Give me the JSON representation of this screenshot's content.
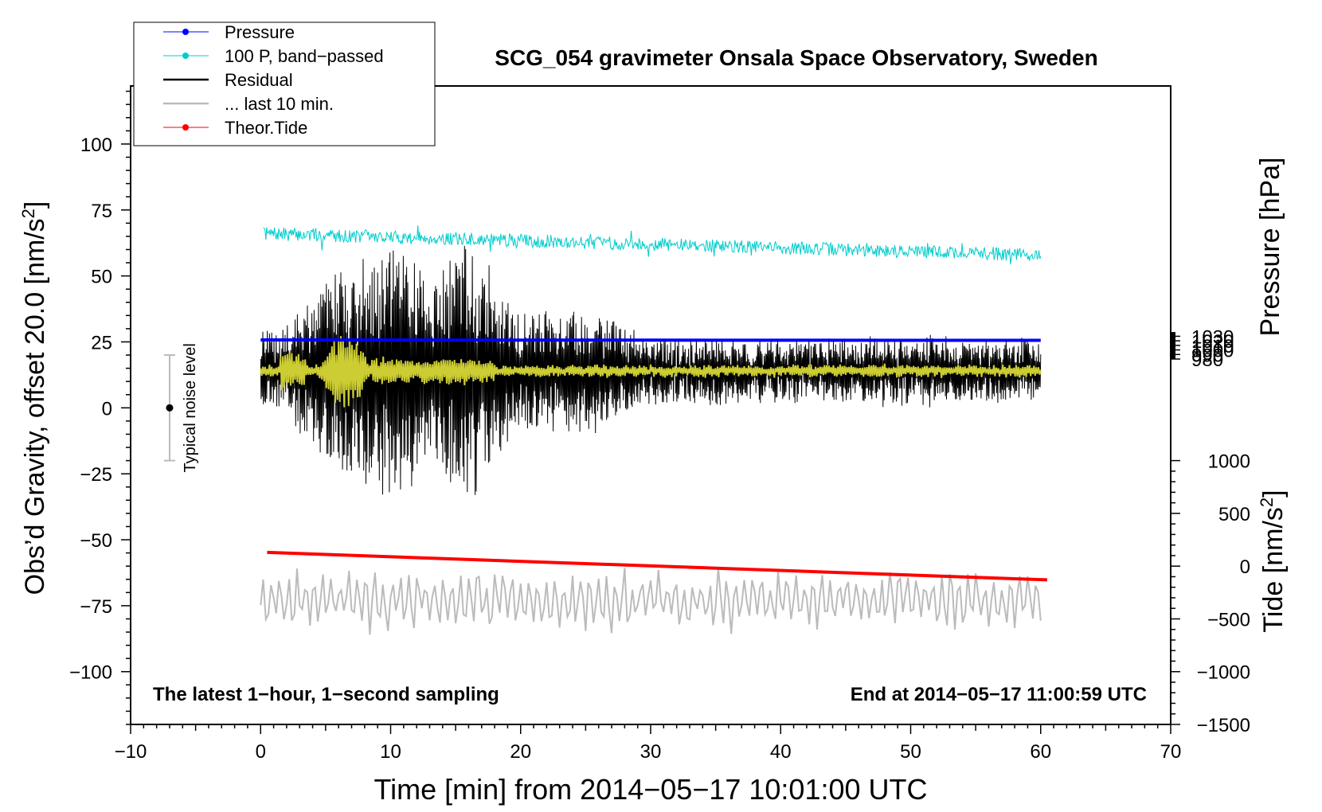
{
  "chart_data": {
    "type": "line",
    "title": "SCG_054 gravimeter Onsala Space Observatory, Sweden",
    "xlabel": "Time [min] from 2014−05−17 10:01:00 UTC",
    "ylabel_left": "Obs’d Gravity, offset 20.0 [nm/s",
    "ylabel_left_unit_exp": "2",
    "ylabel_left_close": "]",
    "ylabel_pressure": "Pressure [hPa]",
    "ylabel_tide": "Tide [nm/s",
    "ylabel_tide_exp": "2",
    "ylabel_tide_close": "]",
    "xlim": [
      -10,
      70
    ],
    "ylim": [
      -120,
      122
    ],
    "x_ticks": [
      -10,
      0,
      10,
      20,
      30,
      40,
      50,
      60,
      70
    ],
    "x_tick_labels": [
      "−10",
      "0",
      "10",
      "20",
      "30",
      "40",
      "50",
      "60",
      "70"
    ],
    "y_ticks": [
      100,
      75,
      50,
      25,
      0,
      -25,
      -50,
      -75,
      -100
    ],
    "y_tick_labels": [
      "100",
      "75",
      "50",
      "25",
      "0",
      "−25",
      "−50",
      "−75",
      "−100"
    ],
    "pressure_axis": {
      "ticks": [
        1030,
        1020,
        1010,
        1000,
        990,
        980
      ],
      "tick_labels": [
        "1030",
        "1020",
        "1010",
        "1000",
        "990",
        "980"
      ],
      "anchor_value": 980,
      "anchor_gravity": 18.5,
      "scale": 0.1725
    },
    "tide_axis": {
      "ticks": [
        1000,
        500,
        0,
        -500,
        -1000,
        -1500
      ],
      "tick_labels": [
        "1000",
        "500",
        "0",
        "−500",
        "−1000",
        "−1500"
      ],
      "anchor_value": 0,
      "anchor_gravity": -60,
      "scale": 0.04
    },
    "series": [
      {
        "name": "Pressure",
        "color": "#0000ff",
        "kind": "pressure",
        "x": [
          0,
          10,
          20,
          30,
          40,
          50,
          60
        ],
        "values": [
          1022.0,
          1021.8,
          1021.6,
          1021.5,
          1021.3,
          1021.2,
          1021.2
        ]
      },
      {
        "name": "100 P, band−passed",
        "color": "#00cccc",
        "kind": "bandpass",
        "x_start": 0.2,
        "x_end": 60,
        "trend_start": 66,
        "trend_end": 58,
        "amplitude": 2.5
      },
      {
        "name": "Residual",
        "color": "#000000",
        "kind": "residual",
        "x_start": 0,
        "x_end": 60,
        "center": 14,
        "envelope_x": [
          0,
          2,
          3,
          5,
          7,
          10,
          12,
          13,
          15,
          16,
          18,
          20,
          24,
          26,
          30,
          40,
          50,
          60
        ],
        "envelope_amp": [
          14,
          16,
          22,
          36,
          40,
          48,
          42,
          30,
          46,
          50,
          36,
          22,
          22,
          22,
          12,
          11,
          12,
          12
        ]
      },
      {
        "name": "... last 10 min.",
        "color": "#bbbbbb",
        "kind": "last10",
        "x_start": 0,
        "x_end": 60,
        "center": -73,
        "amplitude": 11
      },
      {
        "name": "Theor.Tide",
        "color": "#ff0000",
        "kind": "tide",
        "x": [
          0.5,
          60.5
        ],
        "values": [
          130,
          -130
        ]
      }
    ],
    "filtered_residual": {
      "color": "#cccc33",
      "center": 14
    },
    "noise_bar": {
      "label": "Typical noise level",
      "x": -7,
      "center": 0,
      "half_range": 20
    },
    "annotations": {
      "bottom_left": "The latest 1−hour, 1−second sampling",
      "bottom_right": "End at 2014−05−17 11:00:59 UTC"
    },
    "legend": {
      "position": "top-left",
      "entries": [
        {
          "label": "Pressure",
          "color": "#0000ff",
          "marker": true,
          "width": 1
        },
        {
          "label": "100 P, band−passed",
          "color": "#00cccc",
          "marker": true,
          "width": 1
        },
        {
          "label": "Residual",
          "color": "#000000",
          "marker": false,
          "width": 2
        },
        {
          "label": "... last 10 min.",
          "color": "#bbbbbb",
          "marker": false,
          "width": 2
        },
        {
          "label": "Theor.Tide",
          "color": "#ff0000",
          "marker": true,
          "width": 1
        }
      ]
    }
  }
}
